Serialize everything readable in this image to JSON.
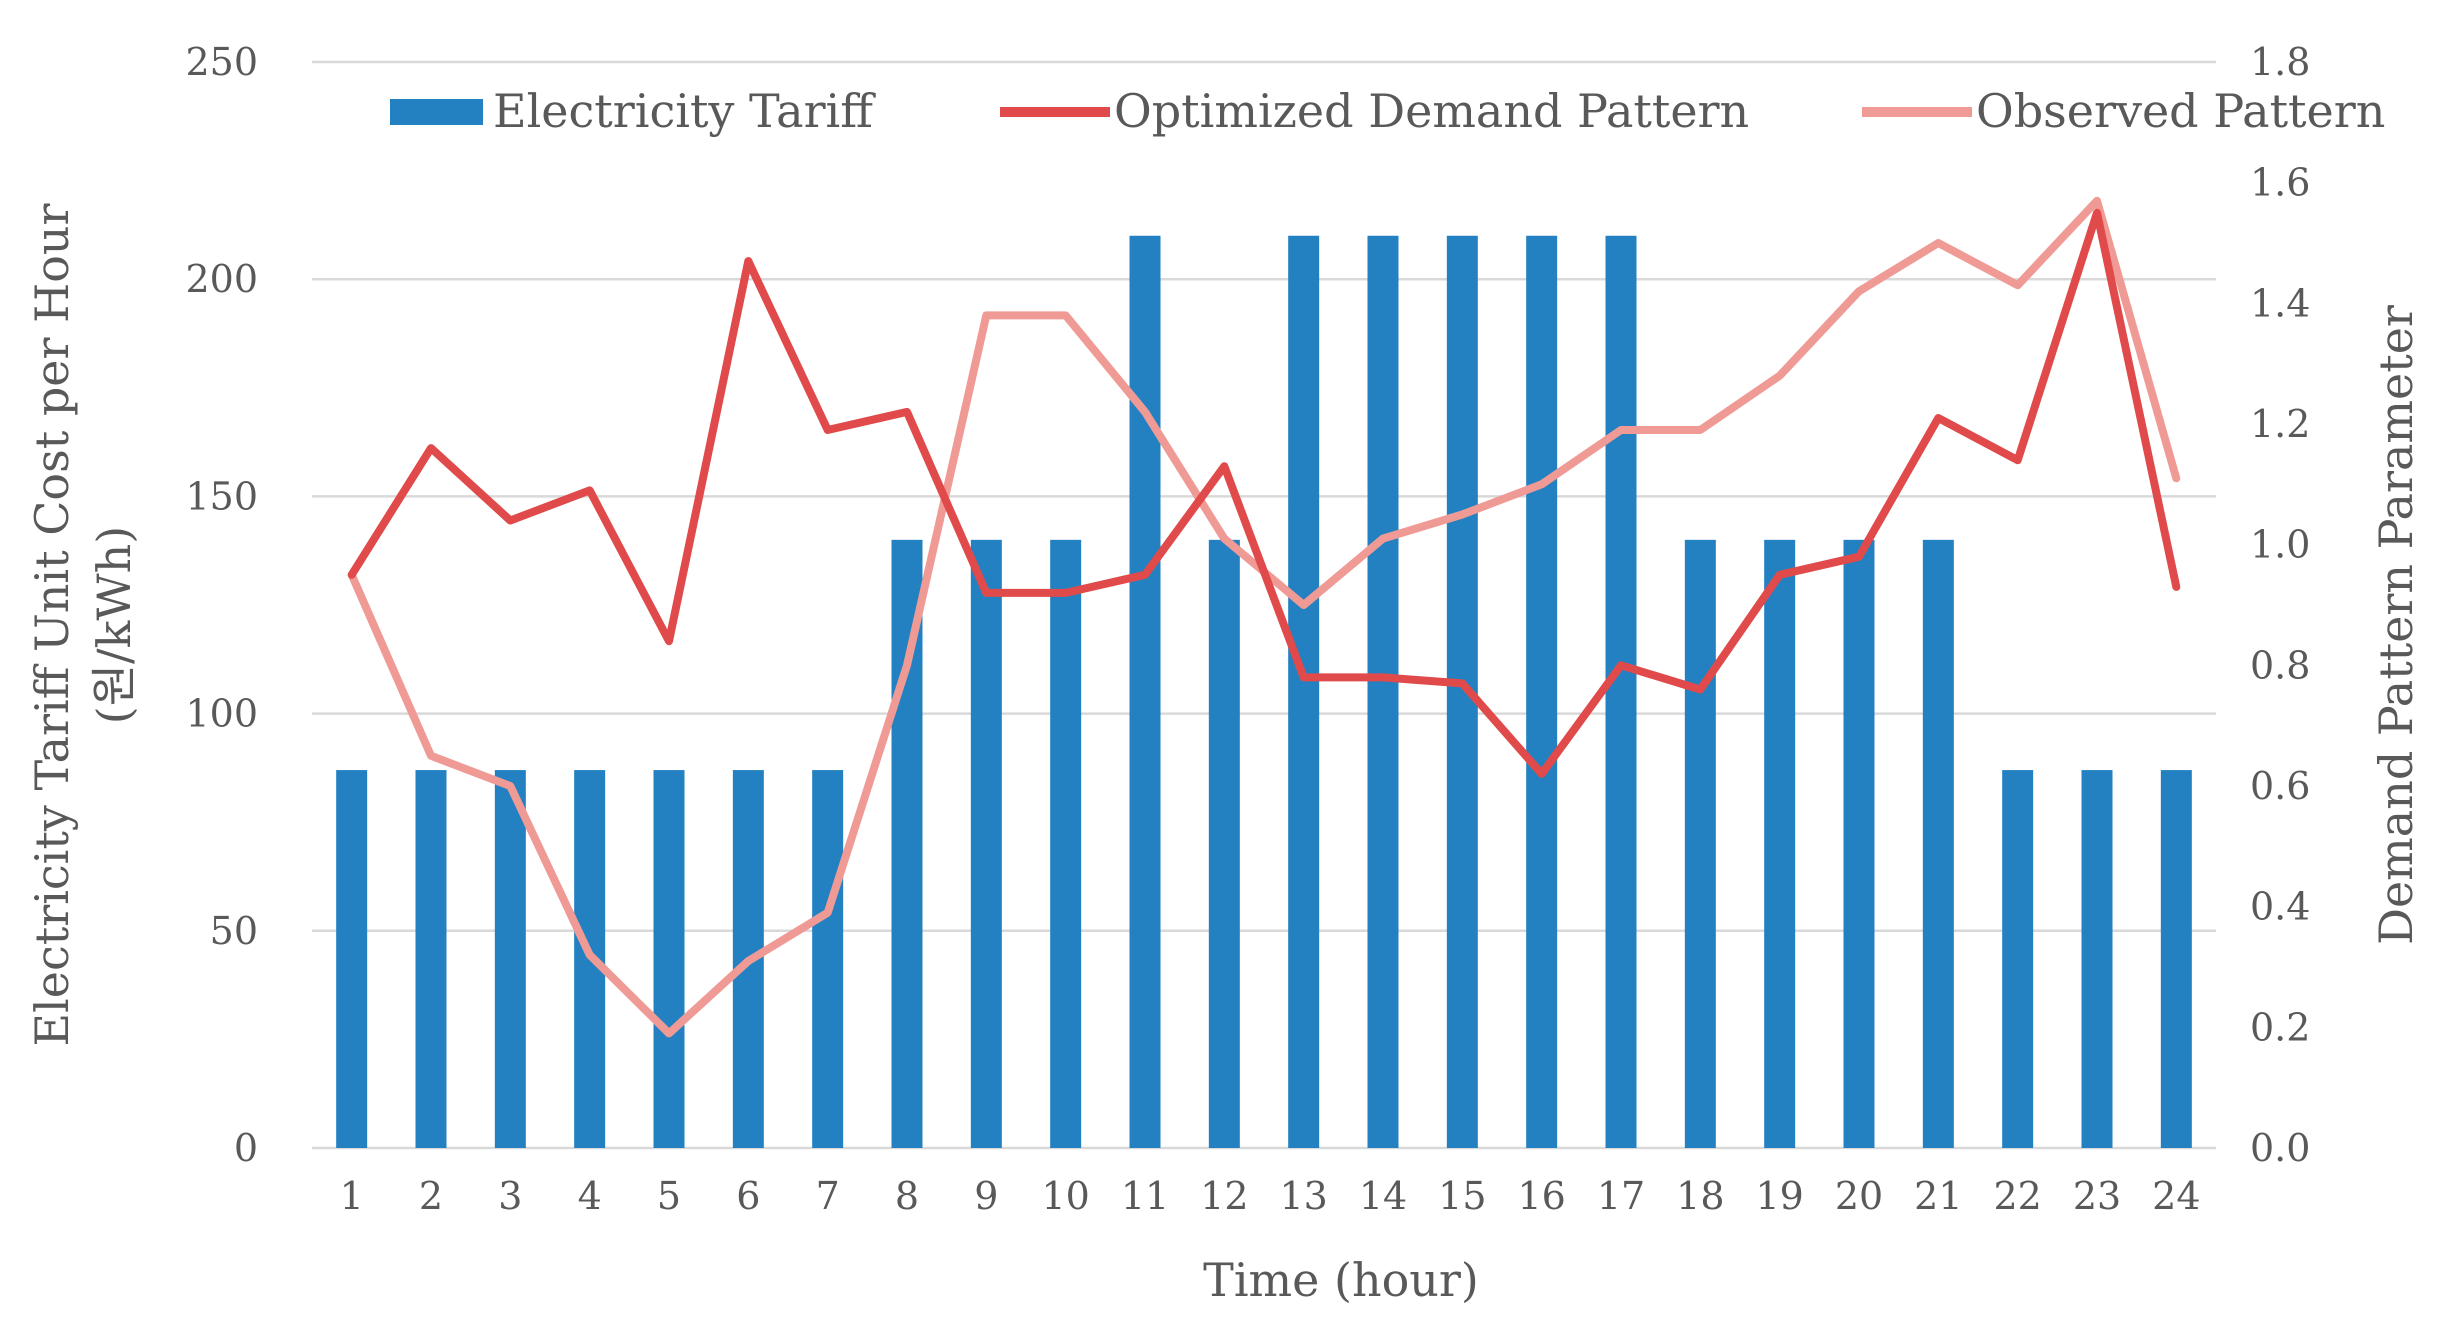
{
  "chart_data": {
    "type": "bar+line",
    "title": "",
    "xlabel": "Time (hour)",
    "ylabel": "Electricity Tariff Unit Cost per Hour",
    "ylabel_unit": "(원/kWh)",
    "y2label": "Demand Pattern Parameter",
    "categories": [
      "1",
      "2",
      "3",
      "4",
      "5",
      "6",
      "7",
      "8",
      "9",
      "10",
      "11",
      "12",
      "13",
      "14",
      "15",
      "16",
      "17",
      "18",
      "19",
      "20",
      "21",
      "22",
      "23",
      "24"
    ],
    "ylim": [
      0,
      250
    ],
    "yticks": [
      "0",
      "50",
      "100",
      "150",
      "200",
      "250"
    ],
    "y2lim": [
      0,
      1.8
    ],
    "y2ticks": [
      "0.0",
      "0.2",
      "0.4",
      "0.6",
      "0.8",
      "1.0",
      "1.2",
      "1.4",
      "1.6",
      "1.8"
    ],
    "grid": true,
    "legend_position": "top",
    "series": [
      {
        "name": "Electricity Tariff",
        "kind": "bar",
        "axis": "left",
        "color": "#2481c1",
        "values": [
          87,
          87,
          87,
          87,
          87,
          87,
          87,
          140,
          140,
          140,
          210,
          140,
          210,
          210,
          210,
          210,
          210,
          140,
          140,
          140,
          140,
          87,
          87,
          87
        ]
      },
      {
        "name": "Optimized Demand Pattern",
        "kind": "line",
        "axis": "right",
        "color": "#e04a4a",
        "values": [
          0.95,
          1.16,
          1.04,
          1.09,
          0.84,
          1.47,
          1.19,
          1.22,
          0.92,
          0.92,
          0.95,
          1.13,
          0.78,
          0.78,
          0.77,
          0.62,
          0.8,
          0.76,
          0.95,
          0.98,
          1.21,
          1.14,
          1.55,
          0.93
        ]
      },
      {
        "name": "Observed Pattern",
        "kind": "line",
        "axis": "right",
        "color": "#f09a96",
        "values": [
          0.95,
          0.65,
          0.6,
          0.32,
          0.19,
          0.31,
          0.39,
          0.8,
          1.38,
          1.38,
          1.22,
          1.01,
          0.9,
          1.01,
          1.05,
          1.1,
          1.19,
          1.19,
          1.28,
          1.42,
          1.5,
          1.43,
          1.57,
          1.11
        ]
      }
    ]
  }
}
